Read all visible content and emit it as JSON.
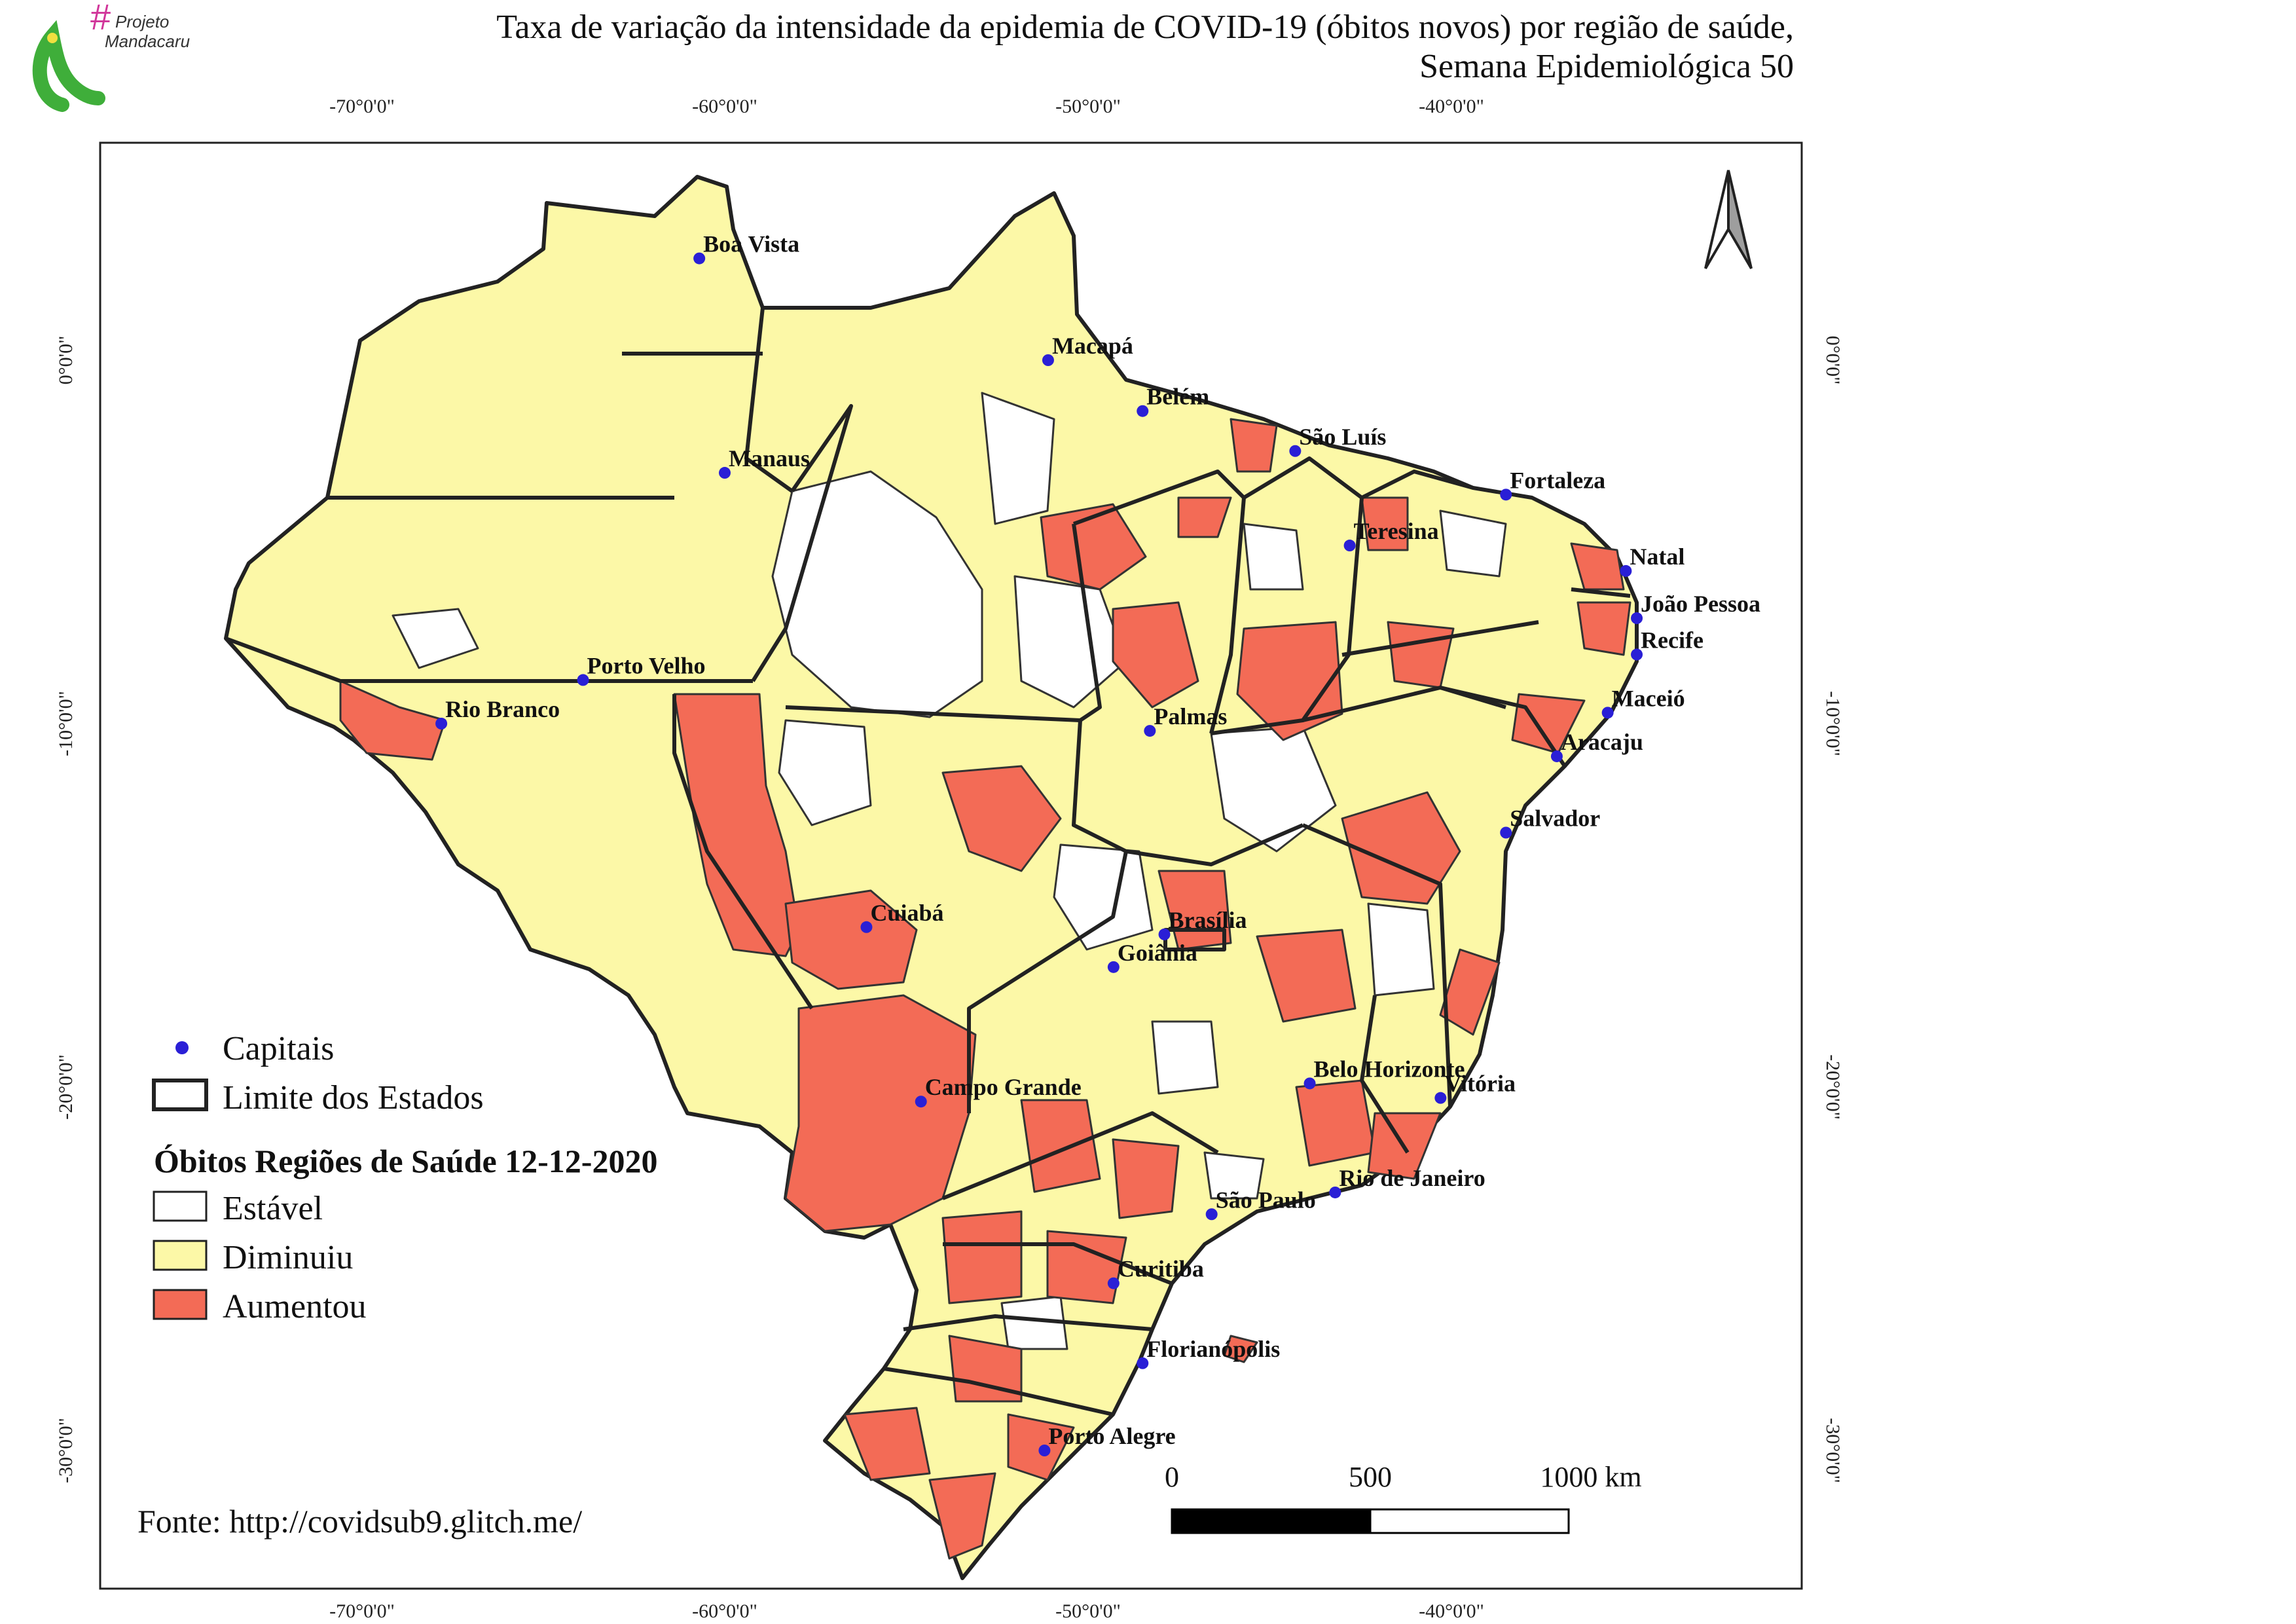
{
  "title": {
    "line1": "Taxa de variação da intensidade da epidemia de COVID-19 (óbitos novos) por região de saúde,",
    "line2": "Semana Epidemiológica 50"
  },
  "logo": {
    "hash": "#",
    "line1": "Projeto",
    "line2": "Mandacaru"
  },
  "axes": {
    "top_ticks": [
      "-70°0'0\"",
      "-60°0'0\"",
      "-50°0'0\"",
      "-40°0'0\""
    ],
    "bottom_ticks": [
      "-70°0'0\"",
      "-60°0'0\"",
      "-50°0'0\"",
      "-40°0'0\""
    ],
    "left_ticks": [
      "0°0'0\"",
      "-10°0'0\"",
      "-20°0'0\"",
      "-30°0'0\""
    ],
    "right_ticks": [
      "0°0'0\"",
      "-10°0'0\"",
      "-20°0'0\"",
      "-30°0'0\""
    ]
  },
  "capitals": [
    {
      "name": "Boa Vista",
      "lon": -60.7,
      "lat": 2.8
    },
    {
      "name": "Macapá",
      "lon": -51.1,
      "lat": 0.0
    },
    {
      "name": "Belém",
      "lon": -48.5,
      "lat": -1.4
    },
    {
      "name": "São Luís",
      "lon": -44.3,
      "lat": -2.5
    },
    {
      "name": "Manaus",
      "lon": -60.0,
      "lat": -3.1
    },
    {
      "name": "Fortaleza",
      "lon": -38.5,
      "lat": -3.7
    },
    {
      "name": "Teresina",
      "lon": -42.8,
      "lat": -5.1
    },
    {
      "name": "Natal",
      "lon": -35.2,
      "lat": -5.8
    },
    {
      "name": "João Pessoa",
      "lon": -34.9,
      "lat": -7.1
    },
    {
      "name": "Recife",
      "lon": -34.9,
      "lat": -8.1
    },
    {
      "name": "Maceió",
      "lon": -35.7,
      "lat": -9.7
    },
    {
      "name": "Porto Velho",
      "lon": -63.9,
      "lat": -8.8
    },
    {
      "name": "Rio Branco",
      "lon": -67.8,
      "lat": -10.0
    },
    {
      "name": "Palmas",
      "lon": -48.3,
      "lat": -10.2
    },
    {
      "name": "Aracaju",
      "lon": -37.1,
      "lat": -10.9
    },
    {
      "name": "Salvador",
      "lon": -38.5,
      "lat": -13.0
    },
    {
      "name": "Cuiabá",
      "lon": -56.1,
      "lat": -15.6
    },
    {
      "name": "Brasília",
      "lon": -47.9,
      "lat": -15.8
    },
    {
      "name": "Goiânia",
      "lon": -49.3,
      "lat": -16.7
    },
    {
      "name": "Belo Horizonte",
      "lon": -43.9,
      "lat": -19.9
    },
    {
      "name": "Vitória",
      "lon": -40.3,
      "lat": -20.3
    },
    {
      "name": "Campo Grande",
      "lon": -54.6,
      "lat": -20.4
    },
    {
      "name": "Rio de Janeiro",
      "lon": -43.2,
      "lat": -22.9
    },
    {
      "name": "São Paulo",
      "lon": -46.6,
      "lat": -23.5
    },
    {
      "name": "Curitiba",
      "lon": -49.3,
      "lat": -25.4
    },
    {
      "name": "Florianópolis",
      "lon": -48.5,
      "lat": -27.6
    },
    {
      "name": "Porto Alegre",
      "lon": -51.2,
      "lat": -30.0
    }
  ],
  "legend": {
    "capitals_label": "Capitais",
    "states_label": "Limite dos Estados",
    "title": "Óbitos Regiões de Saúde 12-12-2020",
    "items": [
      {
        "label": "Estável",
        "color": "#ffffff"
      },
      {
        "label": "Diminuiu",
        "color": "#fcf8a7"
      },
      {
        "label": "Aumentou",
        "color": "#f36b56"
      }
    ]
  },
  "colors": {
    "stable": "#ffffff",
    "decreased": "#fcf8a7",
    "increased": "#f36b56",
    "capital_dot": "#2a1fd6",
    "border": "#222222"
  },
  "scale_bar": {
    "labels": [
      "0",
      "500",
      "1000 km"
    ]
  },
  "source": "Fonte: http://covidsub9.glitch.me/"
}
